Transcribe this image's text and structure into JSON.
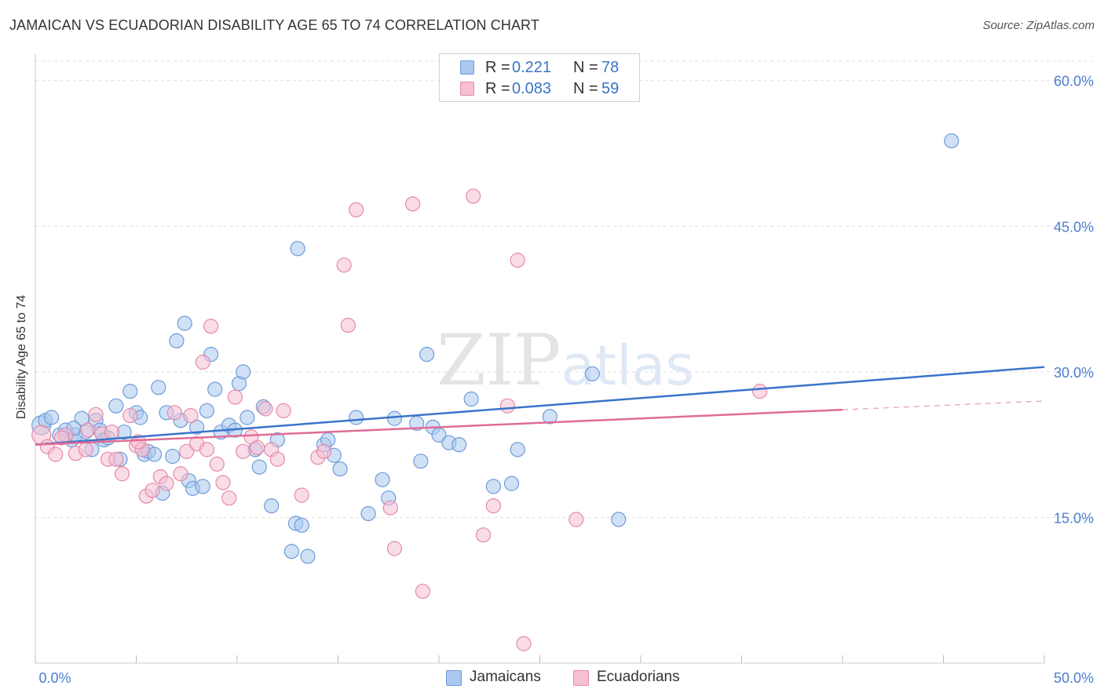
{
  "title": "JAMAICAN VS ECUADORIAN DISABILITY AGE 65 TO 74 CORRELATION CHART",
  "source": "Source: ZipAtlas.com",
  "watermark": "ZIPatlas",
  "legend": {
    "rows": [
      {
        "r_label": "R =",
        "r_value": "0.221",
        "n_label": "N =",
        "n_value": "78"
      },
      {
        "r_label": "R =",
        "r_value": "0.083",
        "n_label": "N =",
        "n_value": "59"
      }
    ]
  },
  "bottom_legend": [
    "Jamaicans",
    "Ecuadorians"
  ],
  "colors": {
    "blue_fill": "#aac8ef",
    "blue_stroke": "#6f9bd8",
    "blue_line": "#3a74c8",
    "pink_fill": "#f6bfd2",
    "pink_stroke": "#e58aaa",
    "pink_line": "#e06c96",
    "tick_text": "#4a7fd0",
    "grid": "#dddddd"
  },
  "chart_data": {
    "type": "scatter",
    "title": "JAMAICAN VS ECUADORIAN DISABILITY AGE 65 TO 74 CORRELATION CHART",
    "xlabel": "",
    "ylabel": "Disability Age 65 to 74",
    "xlim": [
      0,
      50
    ],
    "ylim": [
      0,
      62
    ],
    "x_tick_labels": [
      {
        "value": 0,
        "label": "0.0%"
      },
      {
        "value": 50,
        "label": "50.0%"
      }
    ],
    "y_ticks": [
      {
        "value": 15,
        "label": "15.0%"
      },
      {
        "value": 30,
        "label": "30.0%"
      },
      {
        "value": 45,
        "label": "45.0%"
      },
      {
        "value": 60,
        "label": "60.0%"
      }
    ],
    "grid": true,
    "legend_position": "top-center",
    "series": [
      {
        "name": "Jamaicans",
        "color": "#aac8ef",
        "trend": {
          "x0": 0,
          "y0": 22.5,
          "x1": 50,
          "y1": 30.5,
          "dashed_from": null
        },
        "points": [
          [
            0.3,
            24.5
          ],
          [
            0.5,
            25.0
          ],
          [
            0.8,
            25.3
          ],
          [
            1.2,
            23.5
          ],
          [
            1.5,
            24.0
          ],
          [
            1.8,
            23.0
          ],
          [
            2.0,
            23.5
          ],
          [
            2.3,
            25.2
          ],
          [
            2.5,
            23.8
          ],
          [
            2.8,
            22.0
          ],
          [
            3.0,
            25.0
          ],
          [
            3.2,
            24.0
          ],
          [
            3.4,
            23.0
          ],
          [
            3.6,
            23.2
          ],
          [
            4.0,
            26.5
          ],
          [
            4.2,
            21.0
          ],
          [
            4.4,
            23.8
          ],
          [
            4.7,
            28.0
          ],
          [
            5.0,
            25.8
          ],
          [
            5.2,
            25.3
          ],
          [
            5.4,
            21.5
          ],
          [
            5.6,
            21.8
          ],
          [
            5.9,
            21.5
          ],
          [
            6.1,
            28.4
          ],
          [
            6.3,
            17.5
          ],
          [
            6.5,
            25.8
          ],
          [
            6.8,
            21.3
          ],
          [
            7.0,
            33.2
          ],
          [
            7.2,
            25.0
          ],
          [
            7.4,
            35.0
          ],
          [
            7.6,
            18.8
          ],
          [
            7.8,
            18.0
          ],
          [
            8.0,
            24.3
          ],
          [
            8.3,
            18.2
          ],
          [
            8.5,
            26.0
          ],
          [
            8.7,
            31.8
          ],
          [
            8.9,
            28.2
          ],
          [
            9.2,
            23.8
          ],
          [
            9.6,
            24.5
          ],
          [
            9.9,
            24.0
          ],
          [
            10.1,
            28.8
          ],
          [
            10.3,
            30.0
          ],
          [
            10.5,
            25.3
          ],
          [
            10.9,
            22.0
          ],
          [
            11.1,
            20.2
          ],
          [
            11.3,
            26.4
          ],
          [
            11.7,
            16.2
          ],
          [
            12.0,
            23.0
          ],
          [
            12.7,
            11.5
          ],
          [
            12.9,
            14.4
          ],
          [
            13.0,
            42.7
          ],
          [
            13.2,
            14.2
          ],
          [
            13.5,
            11.0
          ],
          [
            14.3,
            22.5
          ],
          [
            14.5,
            23.0
          ],
          [
            14.8,
            21.4
          ],
          [
            15.1,
            20.0
          ],
          [
            15.9,
            25.3
          ],
          [
            16.5,
            15.4
          ],
          [
            17.2,
            18.9
          ],
          [
            17.5,
            17.0
          ],
          [
            17.8,
            25.2
          ],
          [
            18.9,
            24.7
          ],
          [
            19.1,
            20.8
          ],
          [
            19.4,
            31.8
          ],
          [
            19.7,
            24.3
          ],
          [
            20.0,
            23.5
          ],
          [
            20.5,
            22.7
          ],
          [
            21.0,
            22.5
          ],
          [
            21.6,
            27.2
          ],
          [
            22.7,
            18.2
          ],
          [
            23.6,
            18.5
          ],
          [
            23.9,
            22.0
          ],
          [
            25.5,
            25.4
          ],
          [
            27.6,
            29.8
          ],
          [
            28.9,
            14.8
          ],
          [
            45.4,
            53.8
          ],
          [
            1.9,
            24.2
          ]
        ]
      },
      {
        "name": "Ecuadorians",
        "color": "#f6bfd2",
        "trend": {
          "x0": 0,
          "y0": 22.5,
          "x1": 50,
          "y1": 27.0,
          "dashed_from": 40
        },
        "points": [
          [
            0.3,
            23.5
          ],
          [
            0.6,
            22.3
          ],
          [
            1.0,
            21.5
          ],
          [
            1.5,
            23.5
          ],
          [
            2.0,
            21.6
          ],
          [
            2.5,
            22.0
          ],
          [
            3.0,
            25.6
          ],
          [
            3.3,
            23.6
          ],
          [
            3.6,
            21.0
          ],
          [
            4.0,
            21.0
          ],
          [
            4.3,
            19.5
          ],
          [
            4.7,
            25.5
          ],
          [
            5.0,
            22.4
          ],
          [
            5.3,
            22.0
          ],
          [
            5.5,
            17.2
          ],
          [
            5.8,
            17.8
          ],
          [
            6.2,
            19.2
          ],
          [
            6.5,
            18.5
          ],
          [
            6.9,
            25.8
          ],
          [
            7.2,
            19.5
          ],
          [
            7.5,
            21.8
          ],
          [
            7.7,
            25.5
          ],
          [
            8.0,
            22.6
          ],
          [
            8.3,
            31.0
          ],
          [
            8.5,
            22.0
          ],
          [
            8.7,
            34.7
          ],
          [
            9.0,
            20.5
          ],
          [
            9.3,
            18.6
          ],
          [
            9.6,
            17.0
          ],
          [
            9.9,
            27.4
          ],
          [
            10.3,
            21.8
          ],
          [
            10.7,
            23.3
          ],
          [
            11.0,
            22.2
          ],
          [
            11.4,
            26.2
          ],
          [
            11.7,
            22.0
          ],
          [
            12.0,
            21.0
          ],
          [
            12.3,
            26.0
          ],
          [
            13.2,
            17.3
          ],
          [
            14.0,
            21.2
          ],
          [
            14.3,
            21.8
          ],
          [
            15.3,
            41.0
          ],
          [
            15.5,
            34.8
          ],
          [
            15.9,
            46.7
          ],
          [
            17.6,
            16.0
          ],
          [
            17.8,
            11.8
          ],
          [
            18.7,
            47.3
          ],
          [
            19.2,
            7.4
          ],
          [
            21.7,
            48.1
          ],
          [
            22.2,
            13.2
          ],
          [
            22.7,
            16.2
          ],
          [
            23.4,
            26.5
          ],
          [
            23.9,
            41.5
          ],
          [
            24.2,
            2.0
          ],
          [
            26.8,
            14.8
          ],
          [
            35.9,
            28.0
          ],
          [
            1.3,
            23.2
          ],
          [
            2.6,
            24.0
          ],
          [
            5.1,
            22.8
          ],
          [
            3.8,
            23.8
          ]
        ]
      }
    ]
  }
}
